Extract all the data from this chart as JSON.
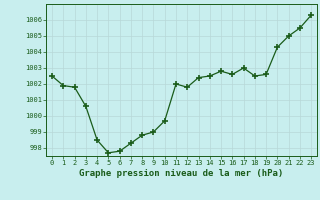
{
  "x": [
    0,
    1,
    2,
    3,
    4,
    5,
    6,
    7,
    8,
    9,
    10,
    11,
    12,
    13,
    14,
    15,
    16,
    17,
    18,
    19,
    20,
    21,
    22,
    23
  ],
  "y": [
    1002.5,
    1001.9,
    1001.8,
    1000.6,
    998.5,
    997.7,
    997.8,
    998.3,
    998.8,
    999.0,
    999.7,
    1002.0,
    1001.8,
    1002.4,
    1002.5,
    1002.8,
    1002.6,
    1003.0,
    1002.5,
    1002.6,
    1004.3,
    1005.0,
    1005.5,
    1006.3
  ],
  "line_color": "#1a5c1a",
  "marker_color": "#1a5c1a",
  "bg_color": "#c8eeee",
  "grid_major_color": "#b8d8d8",
  "grid_minor_color": "#d0e8e8",
  "xlabel": "Graphe pression niveau de la mer (hPa)",
  "xlabel_color": "#1a5c1a",
  "tick_color": "#1a5c1a",
  "ylim": [
    997.5,
    1007.0
  ],
  "yticks": [
    998,
    999,
    1000,
    1001,
    1002,
    1003,
    1004,
    1005,
    1006
  ],
  "xlim": [
    -0.5,
    23.5
  ],
  "xticks": [
    0,
    1,
    2,
    3,
    4,
    5,
    6,
    7,
    8,
    9,
    10,
    11,
    12,
    13,
    14,
    15,
    16,
    17,
    18,
    19,
    20,
    21,
    22,
    23
  ]
}
